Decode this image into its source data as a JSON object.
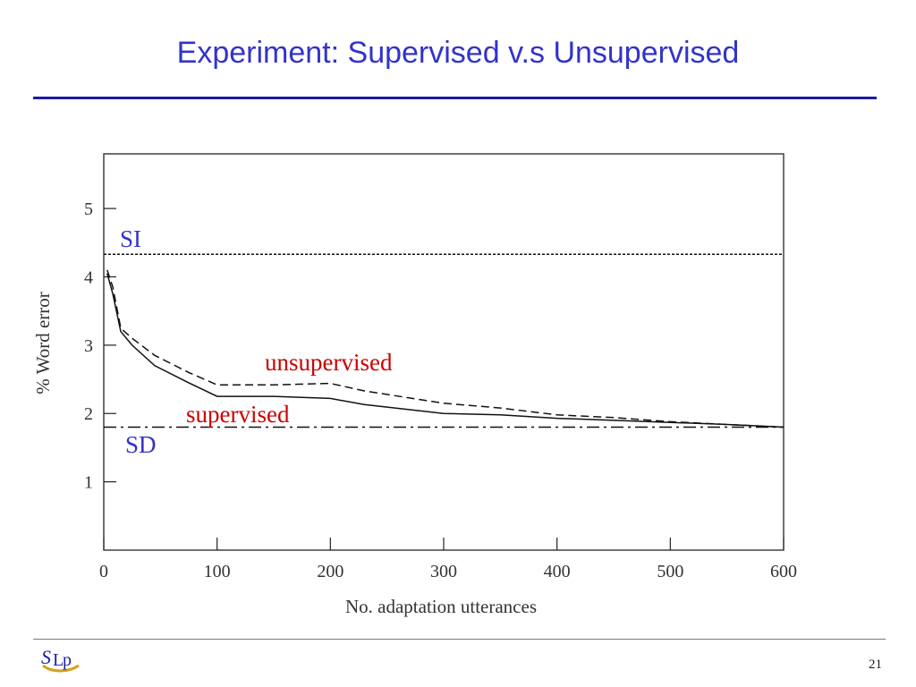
{
  "slide": {
    "title": "Experiment: Supervised v.s Unsupervised",
    "number": "21",
    "accent_color": "#3333cc",
    "logo_text": "SLP",
    "logo_icon": "slp-logo-icon"
  },
  "chart_data": {
    "type": "line",
    "xlabel": "No. adaptation utterances",
    "ylabel": "% Word error",
    "xlim": [
      0,
      600
    ],
    "ylim": [
      0,
      5.8
    ],
    "xticks": [
      0,
      100,
      200,
      300,
      400,
      500,
      600
    ],
    "yticks": [
      1,
      2,
      3,
      4,
      5
    ],
    "grid": false,
    "series": [
      {
        "name": "unsupervised",
        "style": "dashed",
        "label_color": "#cc0000",
        "points": [
          [
            3,
            4.1
          ],
          [
            8,
            3.85
          ],
          [
            15,
            3.25
          ],
          [
            25,
            3.1
          ],
          [
            45,
            2.85
          ],
          [
            75,
            2.6
          ],
          [
            100,
            2.42
          ],
          [
            150,
            2.42
          ],
          [
            200,
            2.44
          ],
          [
            230,
            2.33
          ],
          [
            300,
            2.15
          ],
          [
            350,
            2.08
          ],
          [
            400,
            1.98
          ],
          [
            450,
            1.94
          ],
          [
            500,
            1.88
          ],
          [
            550,
            1.84
          ],
          [
            600,
            1.8
          ]
        ]
      },
      {
        "name": "supervised",
        "style": "solid",
        "label_color": "#cc0000",
        "points": [
          [
            3,
            4.05
          ],
          [
            8,
            3.75
          ],
          [
            15,
            3.2
          ],
          [
            25,
            3.0
          ],
          [
            45,
            2.7
          ],
          [
            75,
            2.45
          ],
          [
            100,
            2.25
          ],
          [
            150,
            2.25
          ],
          [
            200,
            2.22
          ],
          [
            230,
            2.13
          ],
          [
            300,
            2.0
          ],
          [
            350,
            1.98
          ],
          [
            400,
            1.93
          ],
          [
            450,
            1.9
          ],
          [
            500,
            1.87
          ],
          [
            550,
            1.84
          ],
          [
            600,
            1.8
          ]
        ]
      },
      {
        "name": "SI",
        "style": "dotted",
        "label_color": "#3333cc",
        "points": [
          [
            0,
            4.33
          ],
          [
            600,
            4.33
          ]
        ]
      },
      {
        "name": "SD",
        "style": "dash-dot",
        "label_color": "#3333cc",
        "points": [
          [
            0,
            1.8
          ],
          [
            600,
            1.8
          ]
        ]
      }
    ]
  }
}
